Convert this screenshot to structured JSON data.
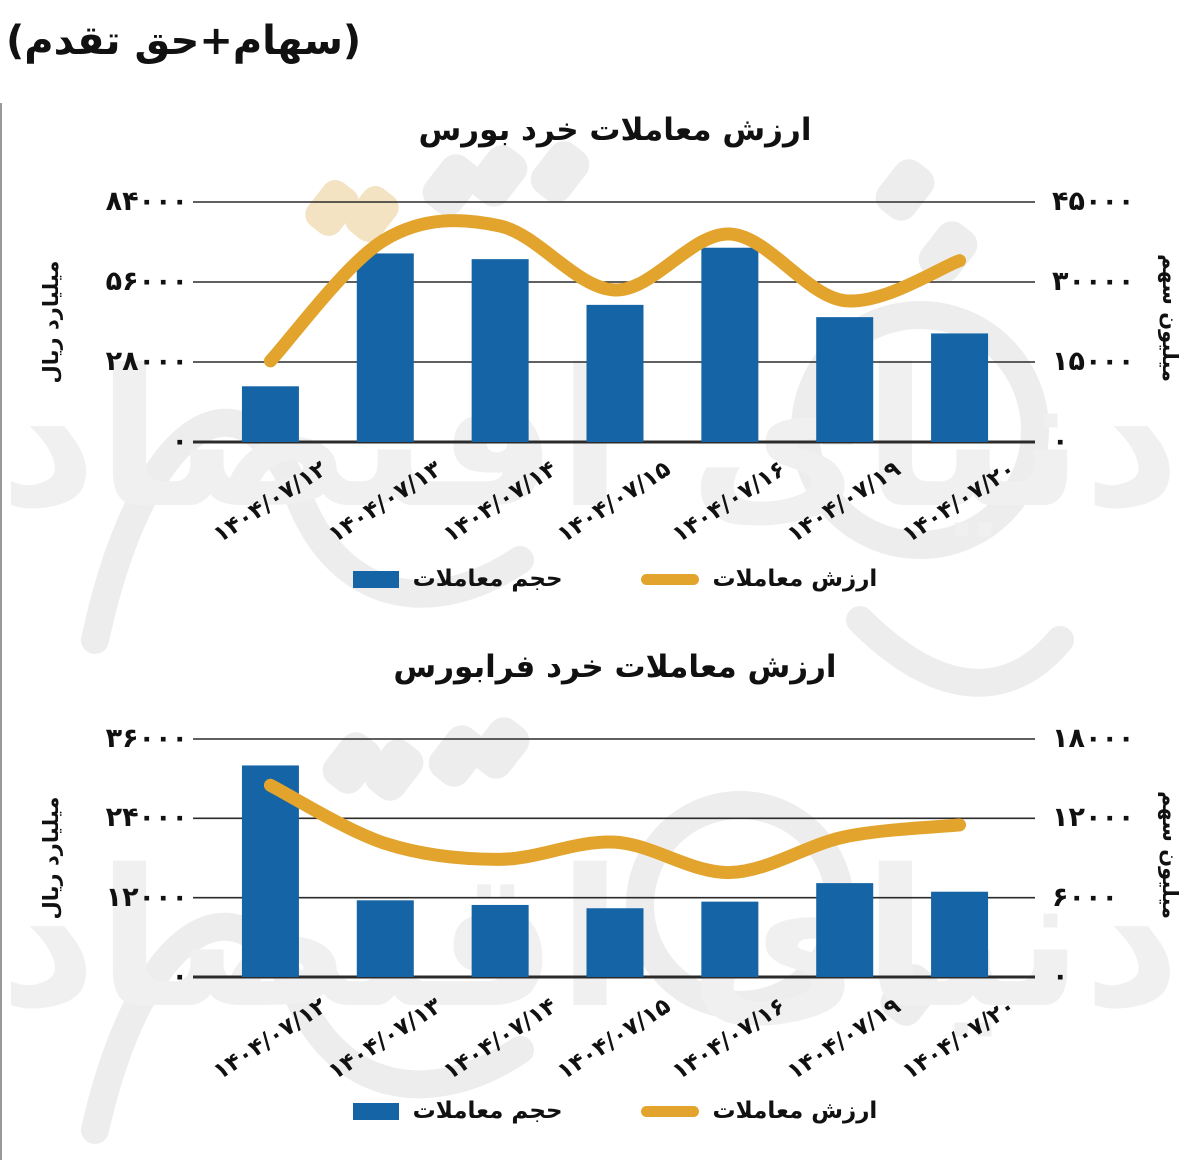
{
  "page": {
    "header_note": "(سهام+حق تقدم)",
    "watermark_text": "دنیای اقتصاد"
  },
  "colors": {
    "bar": "#1564A6",
    "line": "#E2A42C",
    "grid": "#2b2b2b",
    "watermark_gray": "#ededed",
    "watermark_orange": "#f4e3c3"
  },
  "chart_data": [
    {
      "type": "bar",
      "title": "ارزش معاملات خرد بورس",
      "categories": [
        "۱۴۰۴/۰۷/۱۲",
        "۱۴۰۴/۰۷/۱۳",
        "۱۴۰۴/۰۷/۱۴",
        "۱۴۰۴/۰۷/۱۵",
        "۱۴۰۴/۰۷/۱۶",
        "۱۴۰۴/۰۷/۱۹",
        "۱۴۰۴/۰۷/۲۰"
      ],
      "series": [
        {
          "name": "حجم معاملات",
          "type": "bar",
          "axis": "left",
          "values": [
            19500,
            66000,
            64000,
            48000,
            68000,
            43700,
            38000
          ]
        },
        {
          "name": "ارزش معاملات",
          "type": "line",
          "axis": "right",
          "values": [
            15200,
            38000,
            40500,
            28500,
            39000,
            26500,
            34000
          ]
        }
      ],
      "left_axis": {
        "label": "میلیارد ریال",
        "min": 0,
        "max": 84000,
        "ticks": [
          "۸۴۰۰۰",
          "۵۶۰۰۰",
          "۲۸۰۰۰",
          "۰"
        ]
      },
      "right_axis": {
        "label": "میلیون سهم",
        "min": 0,
        "max": 45000,
        "ticks": [
          "۴۵۰۰۰",
          "۳۰۰۰۰",
          "۱۵۰۰۰",
          "۰"
        ]
      },
      "grid": true,
      "legend_position": "bottom"
    },
    {
      "type": "bar",
      "title": "ارزش معاملات خرد فرابورس",
      "categories": [
        "۱۴۰۴/۰۷/۱۲",
        "۱۴۰۴/۰۷/۱۳",
        "۱۴۰۴/۰۷/۱۴",
        "۱۴۰۴/۰۷/۱۵",
        "۱۴۰۴/۰۷/۱۶",
        "۱۴۰۴/۰۷/۱۹",
        "۱۴۰۴/۰۷/۲۰"
      ],
      "series": [
        {
          "name": "حجم معاملات",
          "type": "bar",
          "axis": "left",
          "values": [
            32000,
            11600,
            10900,
            10400,
            11400,
            14200,
            12900
          ]
        },
        {
          "name": "ارزش معاملات",
          "type": "line",
          "axis": "right",
          "values": [
            14500,
            10100,
            8900,
            10200,
            7900,
            10600,
            11500
          ]
        }
      ],
      "left_axis": {
        "label": "میلیارد ریال",
        "min": 0,
        "max": 36000,
        "ticks": [
          "۳۶۰۰۰",
          "۲۴۰۰۰",
          "۱۲۰۰۰",
          "۰"
        ]
      },
      "right_axis": {
        "label": "میلیون سهم",
        "min": 0,
        "max": 18000,
        "ticks": [
          "۱۸۰۰۰",
          "۱۲۰۰۰",
          "۶۰۰۰",
          "۰"
        ]
      },
      "grid": true,
      "legend_position": "bottom"
    }
  ]
}
